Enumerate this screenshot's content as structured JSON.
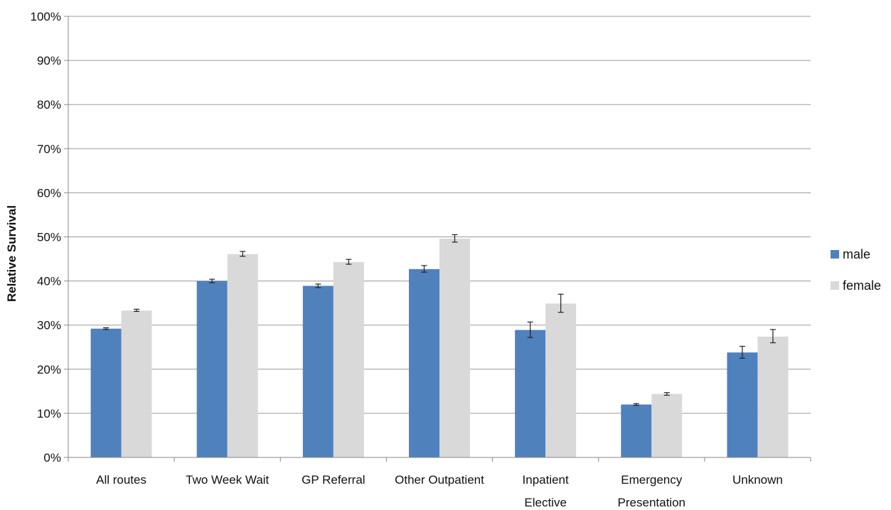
{
  "chart_data": {
    "type": "bar",
    "title": "",
    "xlabel": "",
    "ylabel": "Relative Survival",
    "ylim": [
      0,
      100
    ],
    "yticks": [
      "0%",
      "10%",
      "20%",
      "30%",
      "40%",
      "50%",
      "60%",
      "70%",
      "80%",
      "90%",
      "100%"
    ],
    "categories": [
      [
        "All routes"
      ],
      [
        "Two Week Wait"
      ],
      [
        "GP Referral"
      ],
      [
        "Other Outpatient"
      ],
      [
        "Inpatient",
        "Elective"
      ],
      [
        "Emergency",
        "Presentation"
      ],
      [
        "Unknown"
      ]
    ],
    "series": [
      {
        "name": "male",
        "color": "#4f81bd",
        "values": [
          29.2,
          40.0,
          38.9,
          42.7,
          28.9,
          12.0,
          23.8
        ],
        "error_low": [
          29.0,
          39.6,
          38.5,
          42.0,
          27.2,
          11.8,
          22.5
        ],
        "error_high": [
          29.4,
          40.4,
          39.3,
          43.5,
          30.7,
          12.2,
          25.2
        ]
      },
      {
        "name": "female",
        "color": "#d9d9d9",
        "values": [
          33.3,
          46.1,
          44.3,
          49.6,
          34.9,
          14.4,
          27.4
        ],
        "error_low": [
          33.1,
          45.6,
          43.8,
          48.8,
          32.9,
          14.1,
          26.0
        ],
        "error_high": [
          33.6,
          46.7,
          44.9,
          50.5,
          37.0,
          14.7,
          29.0
        ]
      }
    ],
    "grid": true,
    "legend_position": "right"
  }
}
